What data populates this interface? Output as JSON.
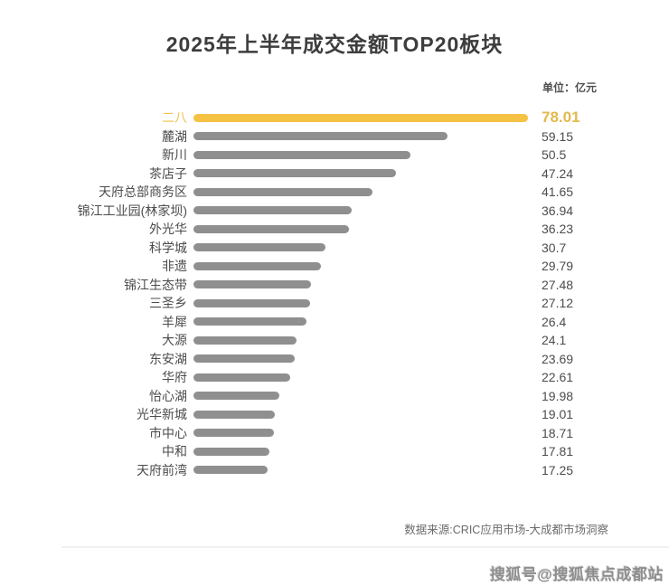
{
  "header": {
    "title": "2025年上半年成交金额TOP20板块",
    "unit_label": "单位：亿元"
  },
  "footer": {
    "source": "数据来源:CRIC应用市场-大成都市场洞察",
    "watermark": "搜狐号@搜狐焦点成都站"
  },
  "colors": {
    "highlight_bar": "#f5c243",
    "default_bar": "#8f8f8f",
    "highlight_text": "#e3b94c",
    "label_text": "#4c4c4c"
  },
  "chart_data": {
    "type": "bar",
    "orientation": "horizontal",
    "title": "2025年上半年成交金额TOP20板块",
    "unit": "亿元",
    "legend": false,
    "grid": false,
    "xlim": [
      0,
      78.01
    ],
    "max_value": 78.01,
    "highlight_index": 0,
    "categories": [
      "二八",
      "麓湖",
      "新川",
      "茶店子",
      "天府总部商务区",
      "锦江工业园(林家坝)",
      "外光华",
      "科学城",
      "非遗",
      "锦江生态带",
      "三圣乡",
      "羊犀",
      "大源",
      "东安湖",
      "华府",
      "怡心湖",
      "光华新城",
      "市中心",
      "中和",
      "天府前湾"
    ],
    "values": [
      78.01,
      59.15,
      50.5,
      47.24,
      41.65,
      36.94,
      36.23,
      30.7,
      29.79,
      27.48,
      27.12,
      26.4,
      24.1,
      23.69,
      22.61,
      19.98,
      19.01,
      18.71,
      17.81,
      17.25
    ]
  }
}
